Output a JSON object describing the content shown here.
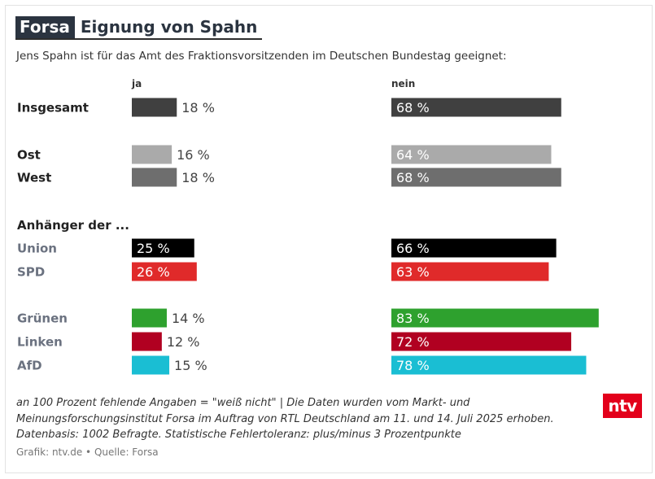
{
  "header": {
    "badge": "Forsa",
    "title": "Eignung von Spahn",
    "subtitle": "Jens Spahn ist für das Amt des Fraktionsvorsitzenden im Deutschen Bundestag geeignet:"
  },
  "columns": {
    "ja": "ja",
    "nein": "nein"
  },
  "chart_data": {
    "type": "bar",
    "orientation": "horizontal",
    "scale_max_percent": 100,
    "series": [
      {
        "name": "ja"
      },
      {
        "name": "nein"
      }
    ],
    "section_heading": "Anhänger der ...",
    "rows": [
      {
        "label": "Insgesamt",
        "ja": 18,
        "nein": 68,
        "color": "#404040",
        "label_color": "#222222"
      },
      {
        "label": "Ost",
        "ja": 16,
        "nein": 64,
        "color": "#aaaaaa",
        "label_color": "#222222"
      },
      {
        "label": "West",
        "ja": 18,
        "nein": 68,
        "color": "#6e6e6e",
        "label_color": "#222222"
      },
      {
        "label": "Union",
        "ja": 25,
        "nein": 66,
        "color": "#000000",
        "label_color": "#6b7280"
      },
      {
        "label": "SPD",
        "ja": 26,
        "nein": 63,
        "color": "#e02a2a",
        "label_color": "#6b7280"
      },
      {
        "label": "Grünen",
        "ja": 14,
        "nein": 83,
        "color": "#2ea12e",
        "label_color": "#6b7280"
      },
      {
        "label": "Linken",
        "ja": 12,
        "nein": 72,
        "color": "#b10021",
        "label_color": "#6b7280"
      },
      {
        "label": "AfD",
        "ja": 15,
        "nein": 78,
        "color": "#1abed3",
        "label_color": "#6b7280"
      }
    ],
    "value_suffix": " %"
  },
  "notes": {
    "line1": "an 100 Prozent fehlende Angaben = \"weiß nicht\" | Die Daten wurden vom Markt- und",
    "line2": "Meinungsforschungsinstitut Forsa im Auftrag von RTL Deutschland am 11. und 14. Juli 2025 erhoben.",
    "line3": "Datenbasis: 1002 Befragte. Statistische Fehlertoleranz: plus/minus 3 Prozentpunkte"
  },
  "credit": "Grafik: ntv.de • Quelle: Forsa",
  "logo": "ntv"
}
